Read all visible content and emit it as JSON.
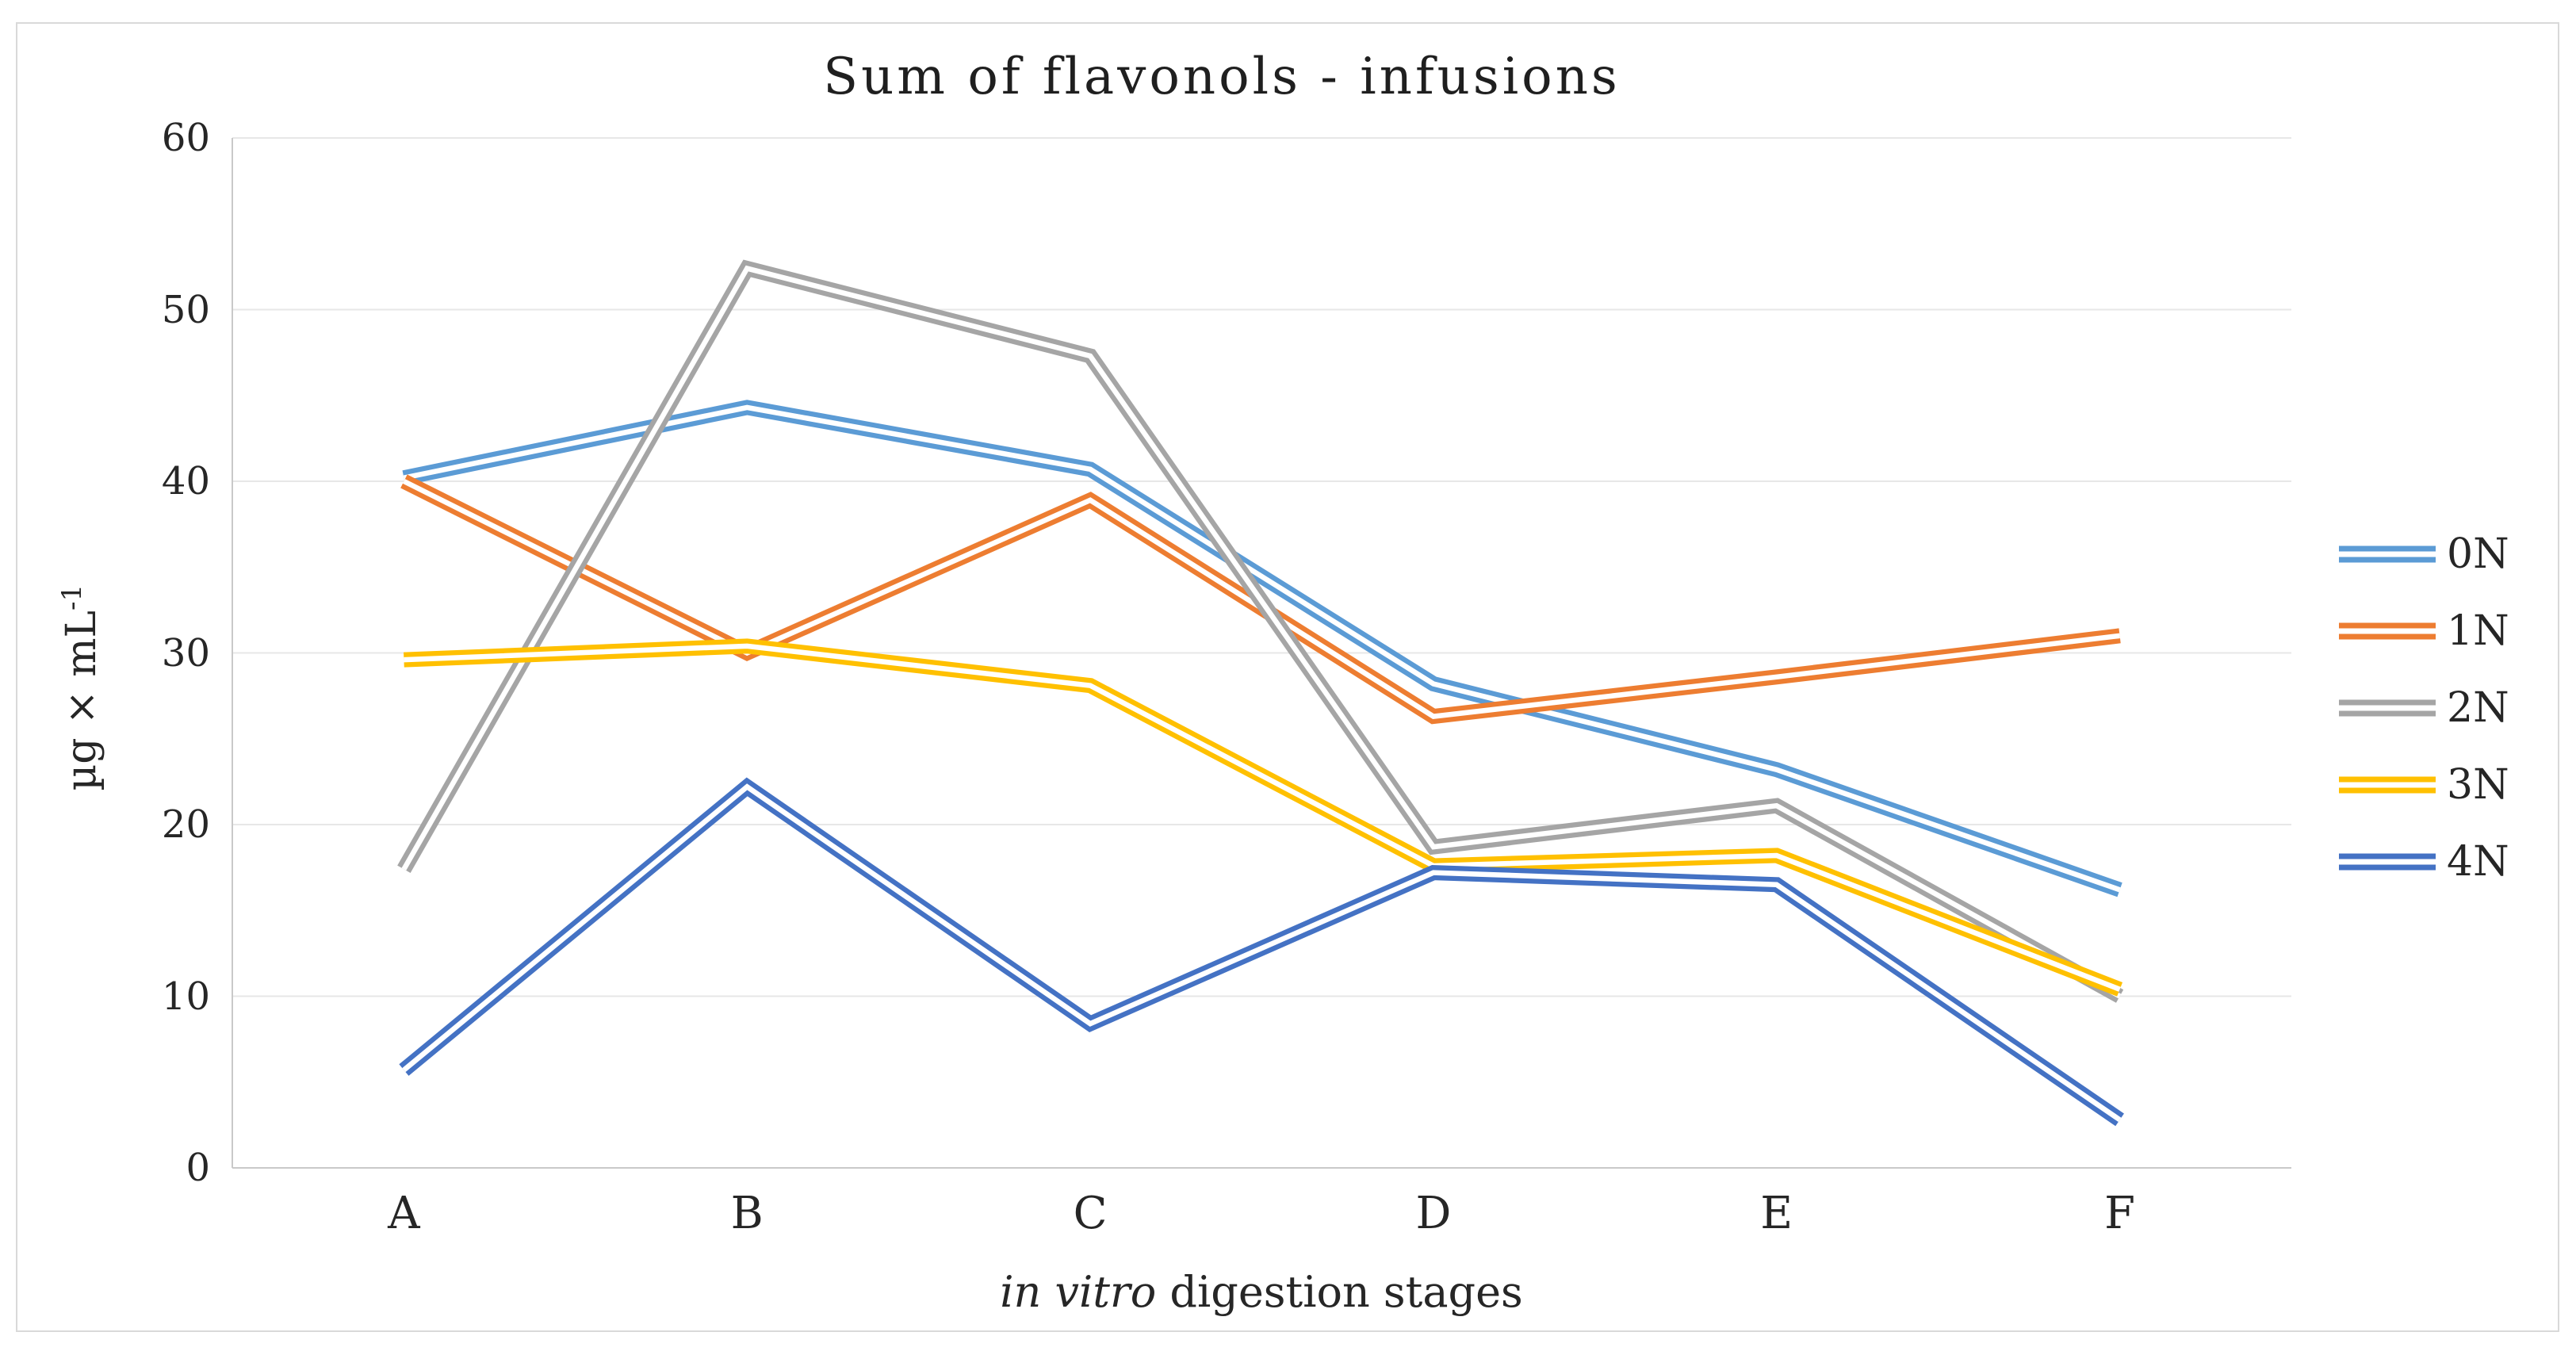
{
  "chart": {
    "title": "Sum of flavonols - infusions",
    "y_axis": {
      "label_base": "µg × mL",
      "label_sup": "-1",
      "ticks": [
        0,
        10,
        20,
        30,
        40,
        50,
        60
      ]
    },
    "x_axis": {
      "label_italic": "in vitro",
      "label_rest": " digestion stages",
      "categories": [
        "A",
        "B",
        "C",
        "D",
        "E",
        "F"
      ]
    },
    "colors": {
      "grid": "#e7e7e7",
      "axis_line": "#c9c9c9",
      "frame_border": "#d9d9d9",
      "text": "#262626",
      "background": "#ffffff"
    }
  },
  "chart_data": {
    "type": "line",
    "title": "Sum of flavonols - infusions",
    "xlabel": "in vitro digestion stages",
    "ylabel": "µg × mL⁻¹",
    "categories": [
      "A",
      "B",
      "C",
      "D",
      "E",
      "F"
    ],
    "series": [
      {
        "name": "0N",
        "color": "#5B9BD5",
        "values": [
          40.2,
          44.3,
          40.7,
          28.2,
          23.2,
          16.2
        ]
      },
      {
        "name": "1N",
        "color": "#ED7D31",
        "values": [
          40.0,
          30.0,
          38.9,
          26.3,
          28.6,
          31.0
        ]
      },
      {
        "name": "2N",
        "color": "#A5A5A5",
        "values": [
          17.4,
          52.4,
          47.3,
          18.7,
          21.1,
          10.0
        ]
      },
      {
        "name": "3N",
        "color": "#FFC000",
        "values": [
          29.6,
          30.4,
          28.1,
          17.6,
          18.2,
          10.4
        ]
      },
      {
        "name": "4N",
        "color": "#4472C4",
        "values": [
          5.7,
          22.2,
          8.4,
          17.2,
          16.5,
          2.8
        ]
      }
    ],
    "ylim": [
      0,
      60
    ],
    "ytick_step": 10,
    "grid": "horizontal",
    "legend_position": "right",
    "line_style": "double"
  }
}
